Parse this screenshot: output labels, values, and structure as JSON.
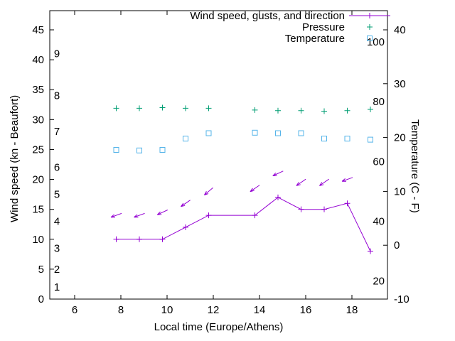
{
  "figure": {
    "background": "#ffffff",
    "axis_color": "#000000"
  },
  "chart_data": {
    "type": "line",
    "title": "",
    "xlabel": "Local time (Europe/Athens)",
    "ylabel_left": "Wind speed (kn - Beaufort)",
    "ylabel_right": "Temperature (C - F)",
    "x_ticks": [
      6,
      8,
      10,
      12,
      14,
      16,
      18
    ],
    "y_left_ticks": [
      0,
      5,
      10,
      15,
      20,
      25,
      30,
      35,
      40,
      45
    ],
    "y_left_range": [
      0,
      45
    ],
    "beaufort_scale": {
      "labels": [
        1,
        2,
        3,
        4,
        5,
        6,
        7,
        8,
        9
      ],
      "kn_positions": [
        2,
        5,
        8.5,
        13,
        17.5,
        22,
        28,
        34,
        41
      ]
    },
    "y_right_ticks_c": [
      -10,
      0,
      10,
      20,
      30,
      40
    ],
    "y_right_range": [
      -10,
      40
    ],
    "fahrenheit_labels": [
      20,
      40,
      60,
      80,
      100
    ],
    "x": [
      7.8,
      8.8,
      9.8,
      10.8,
      11.8,
      13.8,
      14.8,
      15.8,
      16.8,
      17.8,
      18.8
    ],
    "series": [
      {
        "name": "wind_speed",
        "label": "Wind speed, gusts, and direction",
        "color": "#9400d3",
        "marker": "plus-line",
        "axis": "left",
        "values_kn": [
          10,
          10,
          10,
          12,
          14,
          14,
          17,
          15,
          15,
          16,
          8
        ]
      },
      {
        "name": "gusts",
        "label": "",
        "color": "#9400d3",
        "marker": "direction-arrow",
        "axis": "left",
        "x": [
          7.8,
          8.8,
          9.8,
          10.8,
          11.8,
          13.8,
          14.8,
          15.8,
          16.8,
          17.8
        ],
        "values_kn": [
          14,
          14,
          14.5,
          16,
          18,
          18.5,
          21,
          19.5,
          19.5,
          20
        ],
        "arrow_angles_deg": [
          200,
          200,
          205,
          215,
          220,
          215,
          205,
          215,
          215,
          200
        ]
      },
      {
        "name": "pressure",
        "label": "Pressure",
        "color": "#009e73",
        "marker": "plus",
        "axis": "left",
        "values_on_left_axis": [
          31.9,
          31.9,
          32,
          31.9,
          31.9,
          31.6,
          31.5,
          31.5,
          31.4,
          31.5,
          31.7
        ]
      },
      {
        "name": "temperature",
        "label": "Temperature",
        "color": "#56b4e9",
        "marker": "square-open",
        "axis": "right",
        "values_c": [
          17.7,
          17.6,
          17.7,
          19.8,
          20.8,
          20.9,
          20.8,
          20.8,
          19.8,
          19.8,
          19.6
        ]
      }
    ],
    "legend": {
      "position": "top-right",
      "entries": [
        "Wind speed, gusts, and direction",
        "Pressure",
        "Temperature"
      ]
    }
  }
}
